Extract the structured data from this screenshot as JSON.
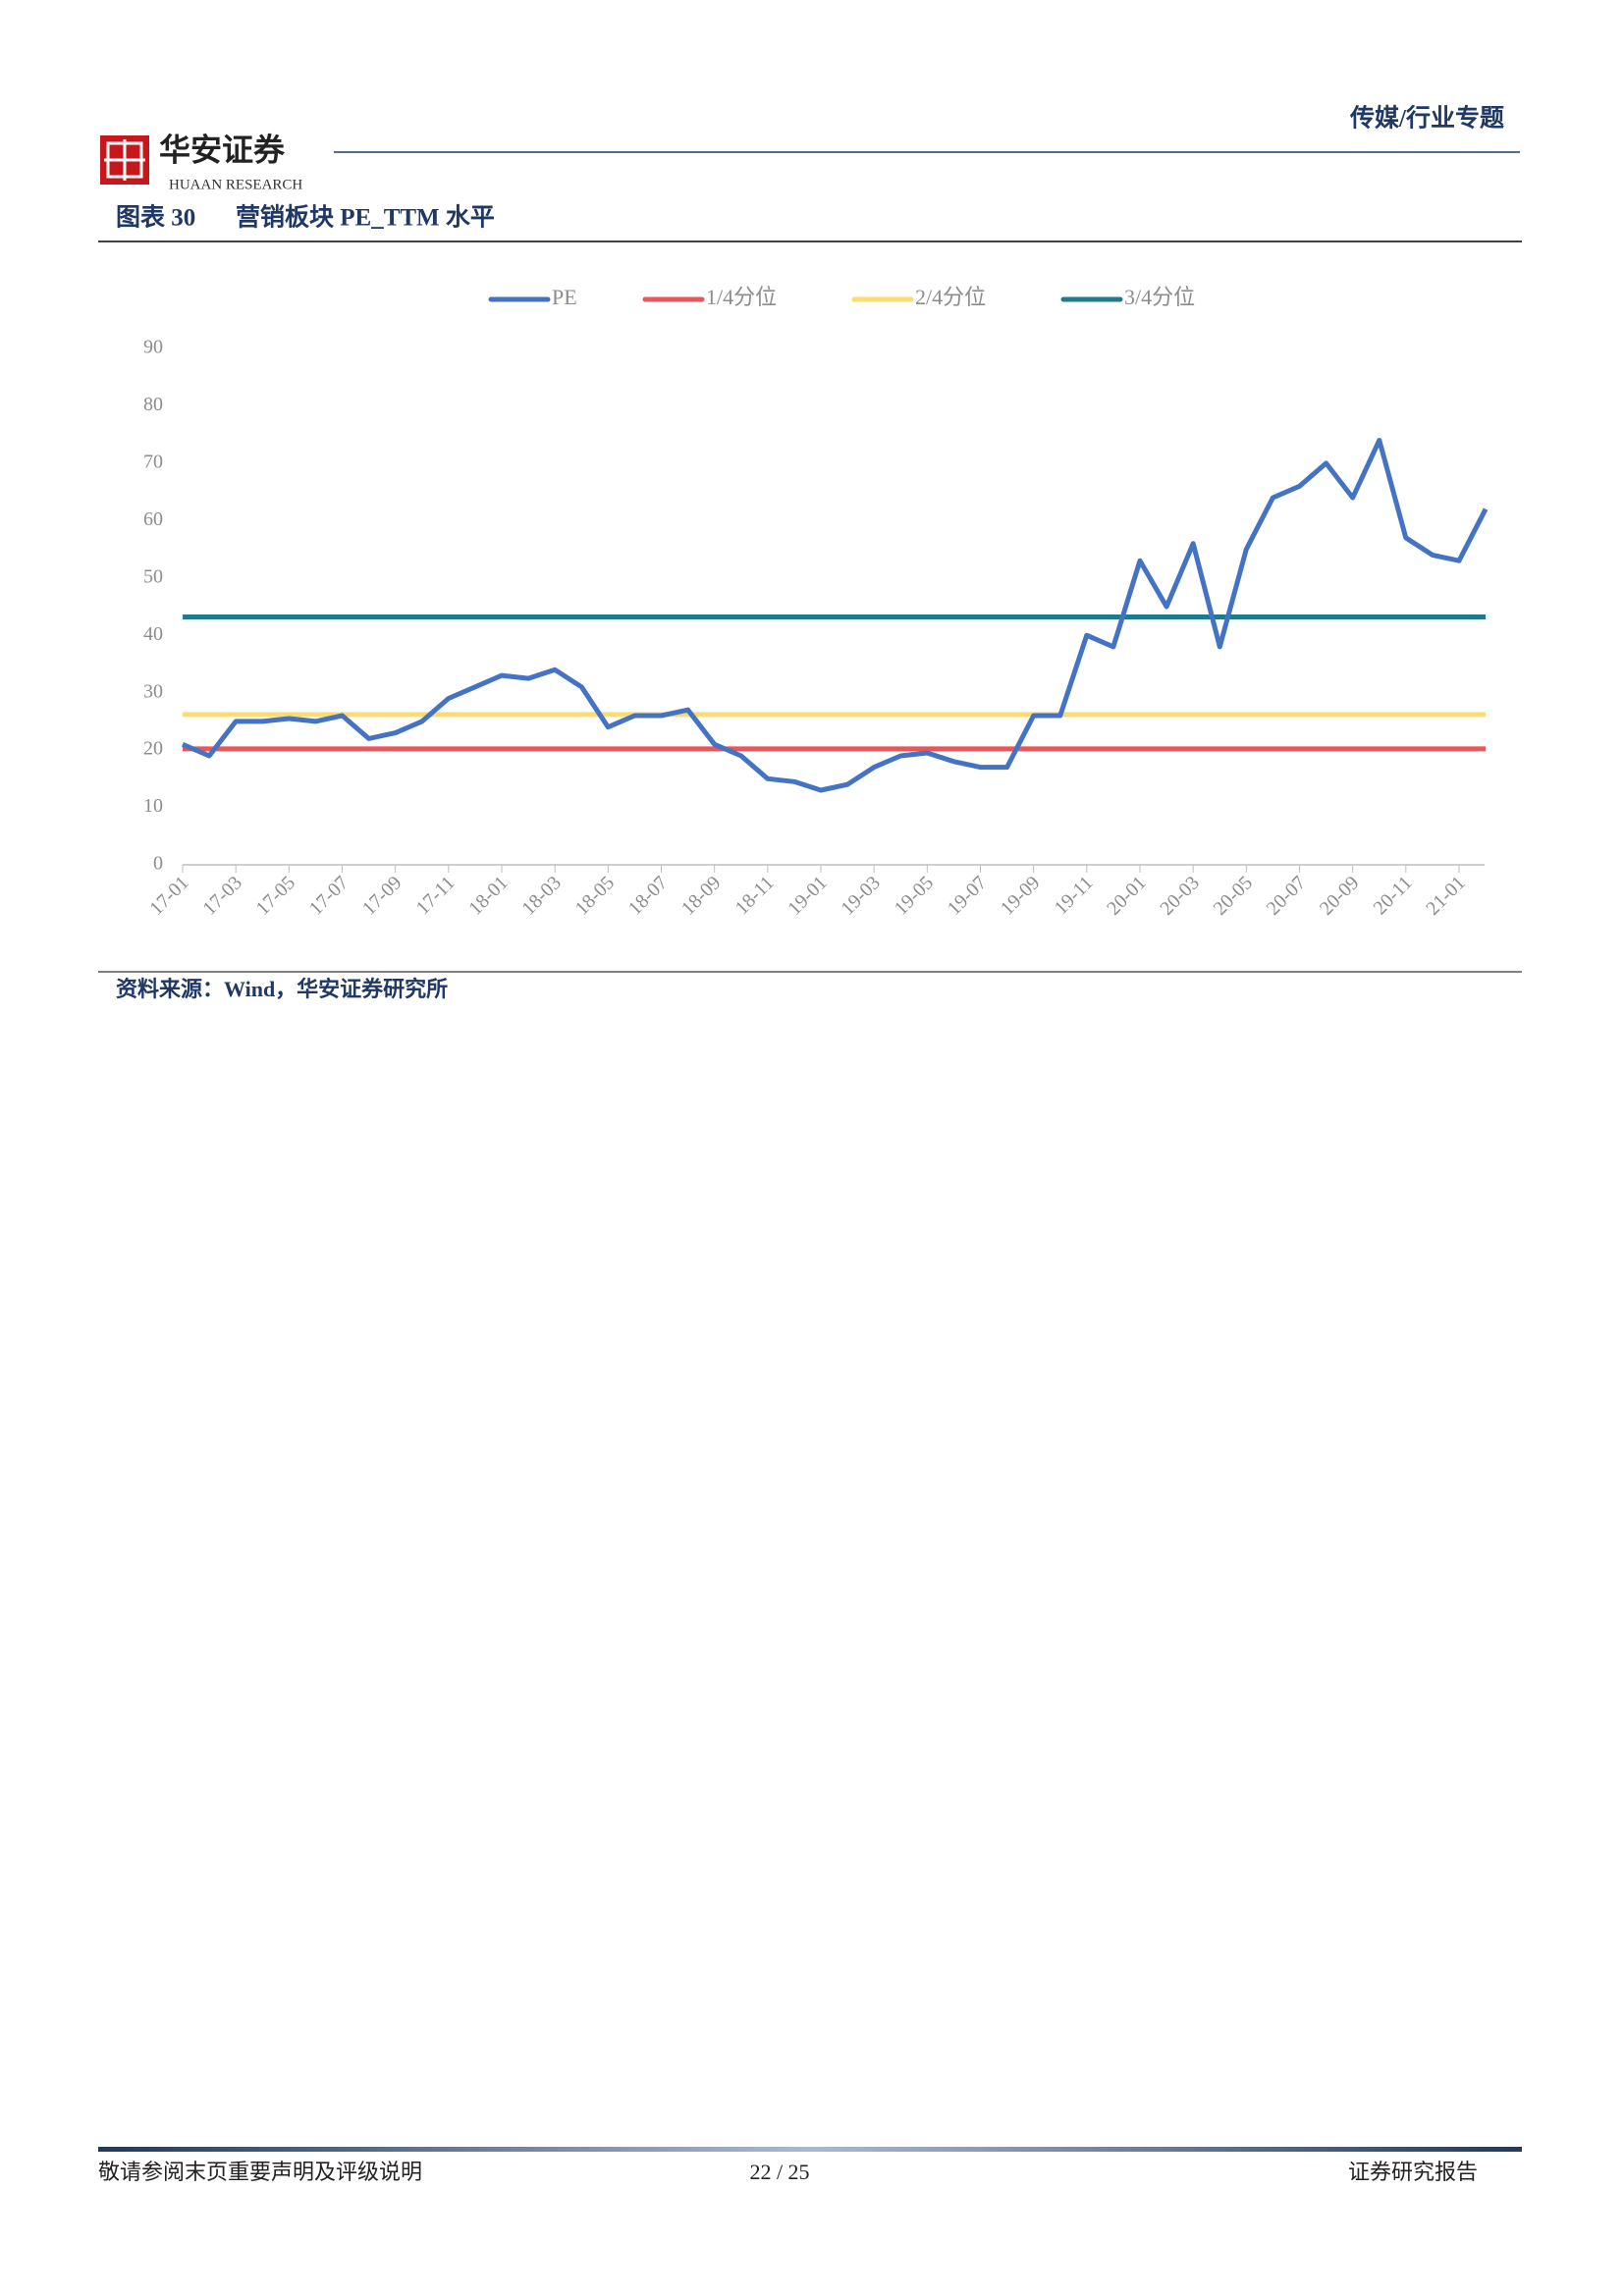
{
  "header": {
    "logo_cn": "华安证券",
    "logo_en": "HUAAN RESEARCH",
    "section": "传媒/行业专题"
  },
  "figure": {
    "label": "图表 30",
    "title": "营销板块 PE_TTM 水平"
  },
  "chart_data": {
    "type": "line",
    "categories": [
      "17-01",
      null,
      "17-03",
      null,
      "17-05",
      null,
      "17-07",
      null,
      "17-09",
      null,
      "17-11",
      null,
      "18-01",
      null,
      "18-03",
      null,
      "18-05",
      null,
      "18-07",
      null,
      "18-09",
      null,
      "18-11",
      null,
      "19-01",
      null,
      "19-03",
      null,
      "19-05",
      null,
      "19-07",
      null,
      "19-09",
      null,
      "19-11",
      null,
      "20-01",
      null,
      "20-03",
      null,
      "20-05",
      null,
      "20-07",
      null,
      "20-09",
      null,
      "20-11",
      null,
      "21-01",
      null
    ],
    "series": [
      {
        "name": "PE",
        "color": "#4472c4",
        "values": [
          21,
          19,
          25,
          25,
          25.5,
          25,
          26,
          22,
          23,
          25,
          29,
          31,
          33,
          32.5,
          34,
          31,
          24,
          26,
          26,
          27,
          21,
          19,
          15,
          14.5,
          13,
          14,
          17,
          19,
          19.5,
          18,
          17,
          17,
          26,
          26,
          40,
          38,
          53,
          45,
          56,
          38,
          55,
          64,
          66,
          70,
          64,
          74,
          57,
          54,
          53,
          62
        ]
      },
      {
        "name": "1/4分位",
        "color": "#e8585a",
        "values": [
          20.2,
          20.2,
          20.2,
          20.2,
          20.2,
          20.2,
          20.2,
          20.2,
          20.2,
          20.2,
          20.2,
          20.2,
          20.2,
          20.2,
          20.2,
          20.2,
          20.2,
          20.2,
          20.2,
          20.2,
          20.2,
          20.2,
          20.2,
          20.2,
          20.2,
          20.2,
          20.2,
          20.2,
          20.2,
          20.2,
          20.2,
          20.2,
          20.2,
          20.2,
          20.2,
          20.2,
          20.2,
          20.2,
          20.2,
          20.2,
          20.2,
          20.2,
          20.2,
          20.2,
          20.2,
          20.2,
          20.2,
          20.2,
          20.2,
          20.2
        ]
      },
      {
        "name": "2/4分位",
        "color": "#fbdc6e",
        "values": [
          26.2,
          26.2,
          26.2,
          26.2,
          26.2,
          26.2,
          26.2,
          26.2,
          26.2,
          26.2,
          26.2,
          26.2,
          26.2,
          26.2,
          26.2,
          26.2,
          26.2,
          26.2,
          26.2,
          26.2,
          26.2,
          26.2,
          26.2,
          26.2,
          26.2,
          26.2,
          26.2,
          26.2,
          26.2,
          26.2,
          26.2,
          26.2,
          26.2,
          26.2,
          26.2,
          26.2,
          26.2,
          26.2,
          26.2,
          26.2,
          26.2,
          26.2,
          26.2,
          26.2,
          26.2,
          26.2,
          26.2,
          26.2,
          26.2,
          26.2
        ]
      },
      {
        "name": "3/4分位",
        "color": "#1f7a8c",
        "values": [
          43.2,
          43.2,
          43.2,
          43.2,
          43.2,
          43.2,
          43.2,
          43.2,
          43.2,
          43.2,
          43.2,
          43.2,
          43.2,
          43.2,
          43.2,
          43.2,
          43.2,
          43.2,
          43.2,
          43.2,
          43.2,
          43.2,
          43.2,
          43.2,
          43.2,
          43.2,
          43.2,
          43.2,
          43.2,
          43.2,
          43.2,
          43.2,
          43.2,
          43.2,
          43.2,
          43.2,
          43.2,
          43.2,
          43.2,
          43.2,
          43.2,
          43.2,
          43.2,
          43.2,
          43.2,
          43.2,
          43.2,
          43.2,
          43.2,
          43.2
        ]
      }
    ],
    "ylim": [
      0,
      90
    ],
    "yticks": [
      0,
      10,
      20,
      30,
      40,
      50,
      60,
      70,
      80,
      90
    ],
    "grid": false,
    "legend": "top"
  },
  "source": "资料来源：Wind，华安证券研究所",
  "footer": {
    "disclaimer": "敬请参阅末页重要声明及评级说明",
    "page": "22 / 25",
    "report_type": "证券研究报告"
  }
}
